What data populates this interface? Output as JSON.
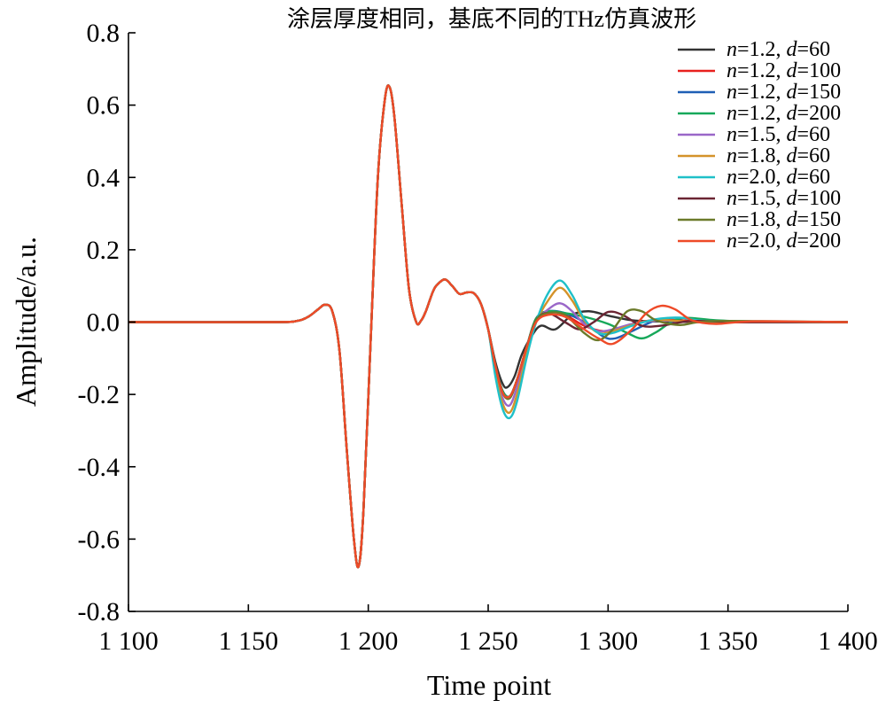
{
  "chart_data": {
    "type": "line",
    "title": "涂层厚度相同，基底不同的THz仿真波形",
    "xlabel": "Time point",
    "ylabel": "Amplitude/a.u.",
    "xlim": [
      1100,
      1400
    ],
    "ylim": [
      -0.8,
      0.8
    ],
    "xticks": [
      1100,
      1150,
      1200,
      1250,
      1300,
      1350,
      1400
    ],
    "xtick_labels": [
      "1 100",
      "1 150",
      "1 200",
      "1 250",
      "1 300",
      "1 350",
      "1 400"
    ],
    "yticks": [
      -0.8,
      -0.6,
      -0.4,
      -0.2,
      0.0,
      0.2,
      0.4,
      0.6,
      0.8
    ],
    "ytick_labels": [
      "-0.8",
      "-0.6",
      "-0.4",
      "-0.2",
      "0.0",
      "0.2",
      "0.4",
      "0.6",
      "0.8"
    ],
    "grid": false,
    "legend_position": "top-right",
    "common_waveform": {
      "x": [
        1100,
        1160,
        1170,
        1175,
        1179,
        1182,
        1185,
        1188,
        1191,
        1194,
        1196,
        1198,
        1201,
        1204,
        1207,
        1209,
        1211,
        1214,
        1217,
        1220,
        1222,
        1224,
        1227,
        1229,
        1232,
        1235,
        1238,
        1241,
        1244,
        1247,
        1250
      ],
      "y": [
        0.0,
        0.0,
        0.003,
        0.015,
        0.035,
        0.048,
        0.03,
        -0.08,
        -0.35,
        -0.6,
        -0.675,
        -0.52,
        -0.05,
        0.4,
        0.62,
        0.648,
        0.56,
        0.32,
        0.09,
        0.0,
        0.004,
        0.03,
        0.085,
        0.105,
        0.118,
        0.1,
        0.078,
        0.082,
        0.08,
        0.05,
        -0.02
      ]
    },
    "series": [
      {
        "label_n": "1.2",
        "label_d": "60",
        "color": "#333333",
        "x": [
          1250,
          1253,
          1256,
          1258,
          1261,
          1264,
          1268,
          1272,
          1278,
          1285,
          1292,
          1300,
          1310,
          1320,
          1335,
          1350,
          1370,
          1400
        ],
        "y": [
          -0.02,
          -0.11,
          -0.17,
          -0.18,
          -0.15,
          -0.09,
          -0.04,
          -0.01,
          -0.02,
          0.02,
          0.03,
          0.018,
          0.005,
          0.002,
          0.0,
          0.0,
          0.0,
          0.0
        ]
      },
      {
        "label_n": "1.2",
        "label_d": "100",
        "color": "#e8201e",
        "x": [
          1250,
          1253,
          1256,
          1259,
          1262,
          1266,
          1270,
          1275,
          1282,
          1290,
          1298,
          1305,
          1315,
          1325,
          1340,
          1355,
          1380,
          1400
        ],
        "y": [
          -0.02,
          -0.12,
          -0.19,
          -0.205,
          -0.16,
          -0.07,
          0.01,
          0.03,
          0.02,
          -0.01,
          -0.025,
          -0.018,
          0.002,
          0.006,
          0.002,
          0.0,
          0.0,
          0.0
        ]
      },
      {
        "label_n": "1.2",
        "label_d": "150",
        "color": "#1f5fb5",
        "x": [
          1250,
          1253,
          1256,
          1259,
          1262,
          1266,
          1270,
          1275,
          1282,
          1290,
          1298,
          1303,
          1310,
          1320,
          1330,
          1345,
          1365,
          1400
        ],
        "y": [
          -0.02,
          -0.12,
          -0.19,
          -0.205,
          -0.16,
          -0.07,
          0.01,
          0.03,
          0.025,
          0.0,
          -0.04,
          -0.045,
          -0.025,
          0.005,
          0.012,
          0.002,
          0.0,
          0.0
        ]
      },
      {
        "label_n": "1.2",
        "label_d": "200",
        "color": "#17a85a",
        "x": [
          1250,
          1253,
          1256,
          1259,
          1262,
          1266,
          1270,
          1275,
          1282,
          1290,
          1300,
          1308,
          1314,
          1320,
          1330,
          1345,
          1365,
          1400
        ],
        "y": [
          -0.02,
          -0.12,
          -0.19,
          -0.205,
          -0.16,
          -0.07,
          0.01,
          0.03,
          0.025,
          0.015,
          -0.005,
          -0.03,
          -0.045,
          -0.028,
          0.01,
          0.005,
          0.0,
          0.0
        ]
      },
      {
        "label_n": "1.5",
        "label_d": "60",
        "color": "#9a67c8",
        "x": [
          1250,
          1253,
          1256,
          1259,
          1262,
          1266,
          1270,
          1275,
          1280,
          1285,
          1290,
          1296,
          1302,
          1310,
          1320,
          1335,
          1360,
          1400
        ],
        "y": [
          -0.02,
          -0.13,
          -0.21,
          -0.23,
          -0.18,
          -0.08,
          0.0,
          0.035,
          0.052,
          0.03,
          -0.005,
          -0.025,
          -0.02,
          -0.005,
          0.004,
          0.001,
          0.0,
          0.0
        ]
      },
      {
        "label_n": "1.8",
        "label_d": "60",
        "color": "#d4932a",
        "x": [
          1250,
          1253,
          1256,
          1259,
          1262,
          1266,
          1270,
          1275,
          1280,
          1285,
          1290,
          1296,
          1302,
          1310,
          1320,
          1335,
          1360,
          1400
        ],
        "y": [
          -0.02,
          -0.14,
          -0.225,
          -0.25,
          -0.2,
          -0.09,
          0.0,
          0.06,
          0.095,
          0.06,
          0.005,
          -0.03,
          -0.025,
          -0.008,
          0.006,
          0.001,
          0.0,
          0.0
        ]
      },
      {
        "label_n": "2.0",
        "label_d": "60",
        "color": "#1fc0c8",
        "x": [
          1250,
          1253,
          1256,
          1259,
          1262,
          1266,
          1270,
          1275,
          1280,
          1285,
          1290,
          1296,
          1302,
          1310,
          1320,
          1330,
          1345,
          1400
        ],
        "y": [
          -0.02,
          -0.15,
          -0.24,
          -0.265,
          -0.22,
          -0.1,
          0.0,
          0.08,
          0.115,
          0.075,
          0.01,
          -0.03,
          -0.03,
          -0.01,
          0.008,
          0.012,
          0.002,
          0.0
        ]
      },
      {
        "label_n": "1.5",
        "label_d": "100",
        "color": "#6b2533",
        "x": [
          1250,
          1253,
          1256,
          1259,
          1262,
          1266,
          1270,
          1275,
          1282,
          1288,
          1294,
          1300,
          1306,
          1314,
          1322,
          1335,
          1355,
          1400
        ],
        "y": [
          -0.02,
          -0.12,
          -0.195,
          -0.21,
          -0.16,
          -0.07,
          0.005,
          0.025,
          0.0,
          -0.02,
          0.0,
          0.028,
          0.02,
          -0.01,
          -0.01,
          0.003,
          0.0,
          0.0
        ]
      },
      {
        "label_n": "1.8",
        "label_d": "150",
        "color": "#6b7a2a",
        "x": [
          1250,
          1253,
          1256,
          1259,
          1262,
          1266,
          1270,
          1275,
          1282,
          1290,
          1296,
          1302,
          1308,
          1314,
          1320,
          1330,
          1345,
          1400
        ],
        "y": [
          -0.02,
          -0.12,
          -0.195,
          -0.21,
          -0.16,
          -0.07,
          0.005,
          0.025,
          0.02,
          -0.03,
          -0.05,
          -0.02,
          0.03,
          0.03,
          0.005,
          -0.008,
          0.003,
          0.0
        ]
      },
      {
        "label_n": "2.0",
        "label_d": "200",
        "color": "#ee4a28",
        "x": [
          1250,
          1253,
          1256,
          1259,
          1262,
          1266,
          1270,
          1275,
          1282,
          1290,
          1296,
          1302,
          1310,
          1316,
          1322,
          1328,
          1335,
          1345,
          1360,
          1400
        ],
        "y": [
          -0.02,
          -0.12,
          -0.195,
          -0.205,
          -0.16,
          -0.07,
          0.0,
          0.02,
          0.015,
          -0.02,
          -0.045,
          -0.06,
          -0.02,
          0.025,
          0.045,
          0.035,
          0.005,
          -0.005,
          0.002,
          0.0
        ]
      }
    ]
  }
}
